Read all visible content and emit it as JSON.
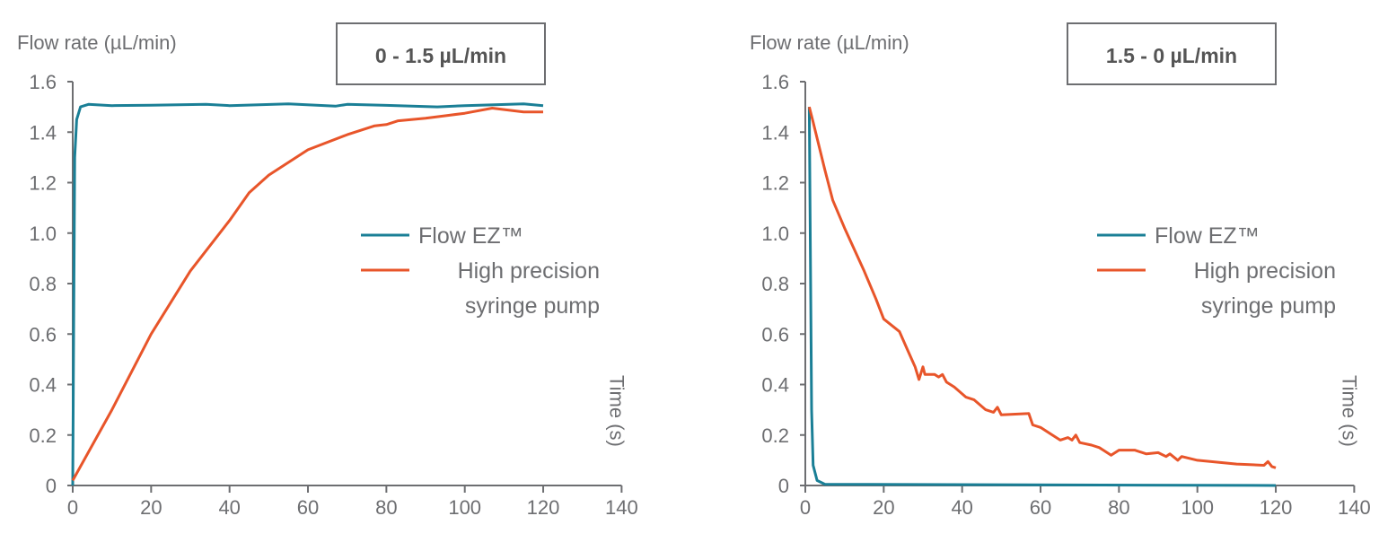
{
  "chart_data": [
    {
      "type": "line",
      "ylabel": "Flow rate (µL/min)",
      "xlabel": "Time (s)",
      "title": "0 - 1.5 µL/min",
      "xlim": [
        0,
        140
      ],
      "ylim": [
        0,
        1.6
      ],
      "xticks": [
        "0",
        "20",
        "40",
        "60",
        "80",
        "100",
        "120",
        "140"
      ],
      "yticks": [
        "0",
        "0.2",
        "0.4",
        "0.6",
        "0.8",
        "1.0",
        "1.2",
        "1.4",
        "1.6"
      ],
      "grid": false,
      "legend_position": "center-right",
      "series": [
        {
          "name": "Flow EZ™",
          "color": "#1a7f96",
          "points": [
            [
              0,
              0
            ],
            [
              0.5,
              1.3
            ],
            [
              1,
              1.45
            ],
            [
              2,
              1.5
            ],
            [
              4,
              1.51
            ],
            [
              10,
              1.505
            ],
            [
              20,
              1.507
            ],
            [
              34,
              1.51
            ],
            [
              40,
              1.505
            ],
            [
              55,
              1.512
            ],
            [
              67,
              1.503
            ],
            [
              70,
              1.51
            ],
            [
              80,
              1.506
            ],
            [
              93,
              1.5
            ],
            [
              100,
              1.505
            ],
            [
              115,
              1.512
            ],
            [
              120,
              1.505
            ]
          ]
        },
        {
          "name": "High precision syringe pump",
          "color": "#e8552a",
          "points": [
            [
              0,
              0.02
            ],
            [
              10,
              0.3
            ],
            [
              20,
              0.6
            ],
            [
              30,
              0.85
            ],
            [
              40,
              1.05
            ],
            [
              45,
              1.16
            ],
            [
              50,
              1.23
            ],
            [
              60,
              1.33
            ],
            [
              70,
              1.39
            ],
            [
              77,
              1.425
            ],
            [
              80,
              1.43
            ],
            [
              83,
              1.445
            ],
            [
              90,
              1.455
            ],
            [
              100,
              1.475
            ],
            [
              107,
              1.495
            ],
            [
              115,
              1.48
            ],
            [
              120,
              1.48
            ]
          ]
        }
      ]
    },
    {
      "type": "line",
      "ylabel": "Flow rate (µL/min)",
      "xlabel": "Time (s)",
      "title": "1.5 - 0 µL/min",
      "xlim": [
        0,
        140
      ],
      "ylim": [
        0,
        1.6
      ],
      "xticks": [
        "0",
        "20",
        "40",
        "60",
        "80",
        "100",
        "120",
        "140"
      ],
      "yticks": [
        "0",
        "0.2",
        "0.4",
        "0.6",
        "0.8",
        "1.0",
        "1.2",
        "1.4",
        "1.6"
      ],
      "grid": false,
      "legend_position": "center-right",
      "series": [
        {
          "name": "Flow EZ™",
          "color": "#1a7f96",
          "points": [
            [
              1,
              1.5
            ],
            [
              1.3,
              0.9
            ],
            [
              1.6,
              0.3
            ],
            [
              2,
              0.08
            ],
            [
              3,
              0.02
            ],
            [
              5,
              0.005
            ],
            [
              120,
              0.0
            ]
          ]
        },
        {
          "name": "High precision syringe pump",
          "color": "#e8552a",
          "points": [
            [
              1,
              1.5
            ],
            [
              2,
              1.44
            ],
            [
              5,
              1.25
            ],
            [
              7,
              1.13
            ],
            [
              10,
              1.02
            ],
            [
              15,
              0.85
            ],
            [
              18,
              0.74
            ],
            [
              20,
              0.66
            ],
            [
              24,
              0.61
            ],
            [
              26,
              0.54
            ],
            [
              28,
              0.47
            ],
            [
              29,
              0.42
            ],
            [
              30,
              0.47
            ],
            [
              30.5,
              0.44
            ],
            [
              33,
              0.44
            ],
            [
              34,
              0.43
            ],
            [
              35,
              0.44
            ],
            [
              36,
              0.41
            ],
            [
              38,
              0.39
            ],
            [
              41,
              0.35
            ],
            [
              43,
              0.34
            ],
            [
              46,
              0.3
            ],
            [
              48,
              0.29
            ],
            [
              49,
              0.31
            ],
            [
              50,
              0.28
            ],
            [
              57,
              0.285
            ],
            [
              58,
              0.24
            ],
            [
              60,
              0.23
            ],
            [
              63,
              0.2
            ],
            [
              65,
              0.18
            ],
            [
              67,
              0.19
            ],
            [
              68,
              0.18
            ],
            [
              69,
              0.2
            ],
            [
              70,
              0.17
            ],
            [
              73,
              0.16
            ],
            [
              75,
              0.15
            ],
            [
              76,
              0.14
            ],
            [
              78,
              0.12
            ],
            [
              80,
              0.14
            ],
            [
              84,
              0.14
            ],
            [
              87,
              0.125
            ],
            [
              90,
              0.13
            ],
            [
              92,
              0.115
            ],
            [
              93,
              0.125
            ],
            [
              95,
              0.1
            ],
            [
              96,
              0.115
            ],
            [
              100,
              0.1
            ],
            [
              110,
              0.085
            ],
            [
              117,
              0.08
            ],
            [
              118,
              0.095
            ],
            [
              119,
              0.075
            ],
            [
              120,
              0.07
            ]
          ]
        }
      ]
    }
  ]
}
